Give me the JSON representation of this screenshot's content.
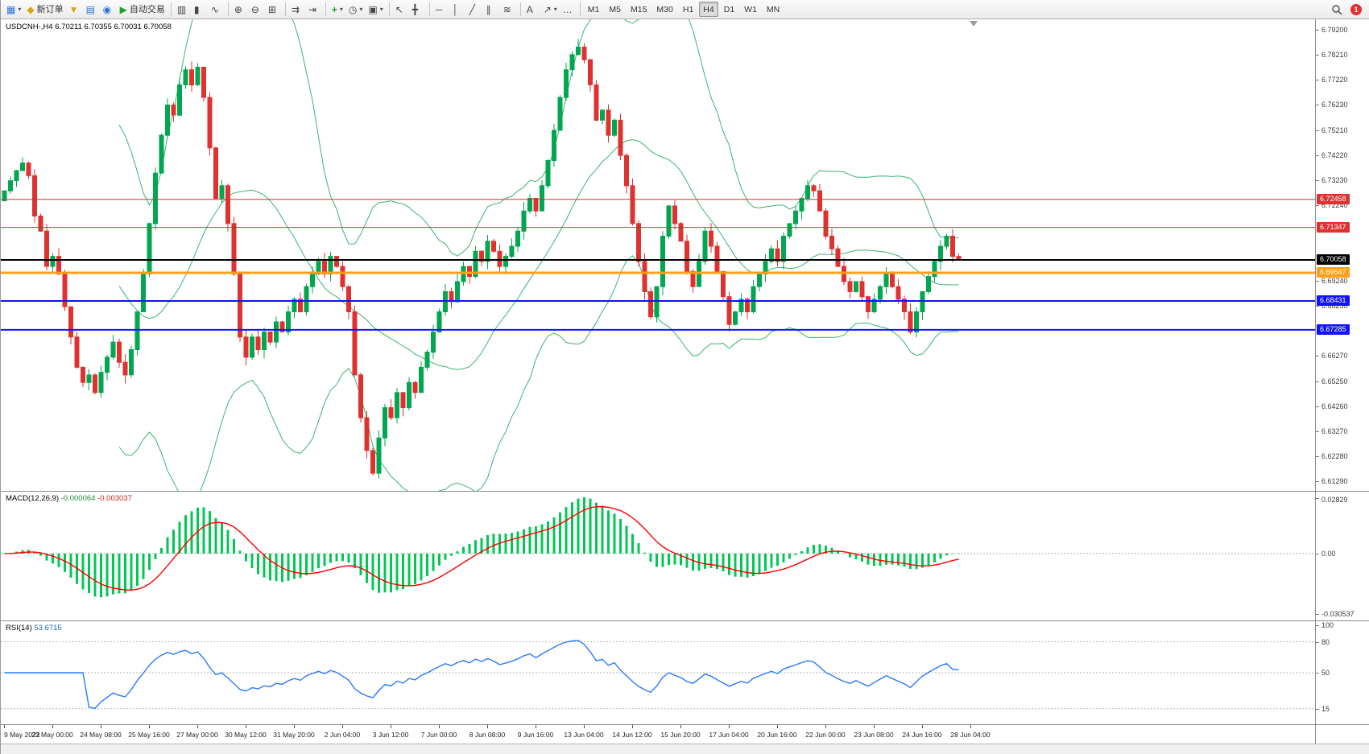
{
  "toolbar": {
    "new_order_label": "新订单",
    "auto_trading_label": "自动交易",
    "timeframes": [
      "M1",
      "M5",
      "M15",
      "M30",
      "H1",
      "H4",
      "D1",
      "W1",
      "MN"
    ],
    "active_timeframe": "H4",
    "notification_count": "1",
    "icons": {
      "new_chart": "▦",
      "dropdown": "▾",
      "new_order": "◆",
      "profiles": "▼",
      "market_watch": "▤",
      "navigator": "◉",
      "auto_trading": "▶",
      "bar_chart": "▥",
      "candle_chart": "▮",
      "line_chart": "∿",
      "zoom_in": "⊕",
      "zoom_out": "⊖",
      "tile_windows": "⊞",
      "auto_scroll": "⇉",
      "chart_shift": "⇥",
      "indicators": "+",
      "periods": "◷",
      "templates": "▣",
      "cursor": "↖",
      "crosshair": "╋",
      "hline": "─",
      "vline": "│",
      "trendline": "╱",
      "channel": "∥",
      "fibonacci": "≋",
      "text": "A",
      "arrows": "↗",
      "more": "…"
    }
  },
  "chart": {
    "symbol_title": "USDCNH-,H4",
    "ohlc_title": "6.70211 6.70355 6.70031 6.70058",
    "price_axis_labels": [
      "6.79200",
      "6.78210",
      "6.77220",
      "6.76230",
      "6.75210",
      "6.74220",
      "6.73230",
      "6.72240",
      "6.69240",
      "6.68250",
      "6.66270",
      "6.65250",
      "6.64260",
      "6.63270",
      "6.62280",
      "6.61290"
    ],
    "levels": [
      {
        "price": "6.72458",
        "color": "#e03131",
        "width": 1
      },
      {
        "price": "6.71347",
        "color": "#e03131",
        "width": 1
      },
      {
        "price": "6.70058",
        "color": "#000000",
        "width": 2
      },
      {
        "price": "6.69547",
        "color": "#ff9f1a",
        "width": 3
      },
      {
        "price": "6.68431",
        "color": "#1212ff",
        "width": 2
      },
      {
        "price": "6.67285",
        "color": "#1212ff",
        "width": 2
      }
    ]
  },
  "macd_panel": {
    "name": "MACD(12,26,9)",
    "main_value": "-0.000064",
    "signal_value": "-0.003037",
    "axis_top": "0.02829",
    "axis_zero": "0.00",
    "axis_bottom": "-0.030537"
  },
  "rsi_panel": {
    "name": "RSI(14)",
    "value": "53.6715"
  },
  "colors": {
    "candle_up": "#00a650",
    "candle_down": "#e03131",
    "bollinger": "#3cb371",
    "macd_histogram": "#00c853",
    "macd_signal": "#ff0000",
    "rsi_line": "#2979ff"
  },
  "chart_data": {
    "type": "candlestick",
    "title": "USDCNH-,H4",
    "timeframe": "H4",
    "price_min": 6.609,
    "price_max": 6.796,
    "first_open": 6.724,
    "closes": [
      6.728,
      6.732,
      6.736,
      6.739,
      6.734,
      6.718,
      6.712,
      6.698,
      6.702,
      6.695,
      6.682,
      6.67,
      6.658,
      6.652,
      6.655,
      6.648,
      6.656,
      6.662,
      6.668,
      6.66,
      6.655,
      6.665,
      6.68,
      6.695,
      6.715,
      6.735,
      6.75,
      6.762,
      6.758,
      6.77,
      6.776,
      6.77,
      6.777,
      6.765,
      6.745,
      6.725,
      6.73,
      6.715,
      6.695,
      6.67,
      6.662,
      6.67,
      6.665,
      6.672,
      6.668,
      6.676,
      6.672,
      6.68,
      6.685,
      6.68,
      6.69,
      6.695,
      6.7,
      6.695,
      6.702,
      6.698,
      6.69,
      6.68,
      6.655,
      6.638,
      6.625,
      6.616,
      6.63,
      6.642,
      6.638,
      6.648,
      6.642,
      6.652,
      6.648,
      6.658,
      6.664,
      6.672,
      6.68,
      6.688,
      6.684,
      6.692,
      6.698,
      6.694,
      6.704,
      6.7,
      6.708,
      6.704,
      6.698,
      6.702,
      6.706,
      6.712,
      6.72,
      6.725,
      6.72,
      6.73,
      6.74,
      6.752,
      6.765,
      6.776,
      6.782,
      6.785,
      6.78,
      6.77,
      6.756,
      6.76,
      6.75,
      6.756,
      6.742,
      6.73,
      6.715,
      6.7,
      6.688,
      6.678,
      6.69,
      6.71,
      6.722,
      6.715,
      6.708,
      6.696,
      6.69,
      6.7,
      6.712,
      6.706,
      6.696,
      6.686,
      6.675,
      6.68,
      6.685,
      6.68,
      6.69,
      6.695,
      6.7,
      6.705,
      6.7,
      6.71,
      6.715,
      6.72,
      6.725,
      6.73,
      6.728,
      6.72,
      6.71,
      6.705,
      6.698,
      6.692,
      6.688,
      6.692,
      6.686,
      6.68,
      6.685,
      6.69,
      6.695,
      6.69,
      6.685,
      6.68,
      6.672,
      6.68,
      6.688,
      6.694,
      6.7,
      6.706,
      6.71,
      6.702,
      6.70058
    ],
    "overlays": [
      "Bollinger Bands (20,2)"
    ],
    "indicators": [
      {
        "name": "MACD(12,26,9)",
        "values": "-0.000064 -0.003037",
        "axis": [
          "0.02829",
          "0.00",
          "-0.030537"
        ],
        "range": [
          -0.030537,
          0.02829
        ]
      },
      {
        "name": "RSI(14)",
        "value": "53.6715",
        "axis": [
          "100",
          "80",
          "50",
          "15"
        ],
        "levels": [
          80,
          50,
          15
        ],
        "range": [
          0,
          100
        ]
      }
    ],
    "x_axis": [
      "9 May 2022",
      "23 May 00:00",
      "24 May 08:00",
      "25 May 16:00",
      "27 May 00:00",
      "30 May 12:00",
      "31 May 20:00",
      "2 Jun 04:00",
      "3 Jun 12:00",
      "7 Jun 00:00",
      "8 Jun 08:00",
      "9 Jun 16:00",
      "13 Jun 04:00",
      "14 Jun 12:00",
      "15 Jun 20:00",
      "17 Jun 04:00",
      "20 Jun 16:00",
      "22 Jun 00:00",
      "23 Jun 08:00",
      "24 Jun 16:00",
      "28 Jun 04:00"
    ]
  }
}
